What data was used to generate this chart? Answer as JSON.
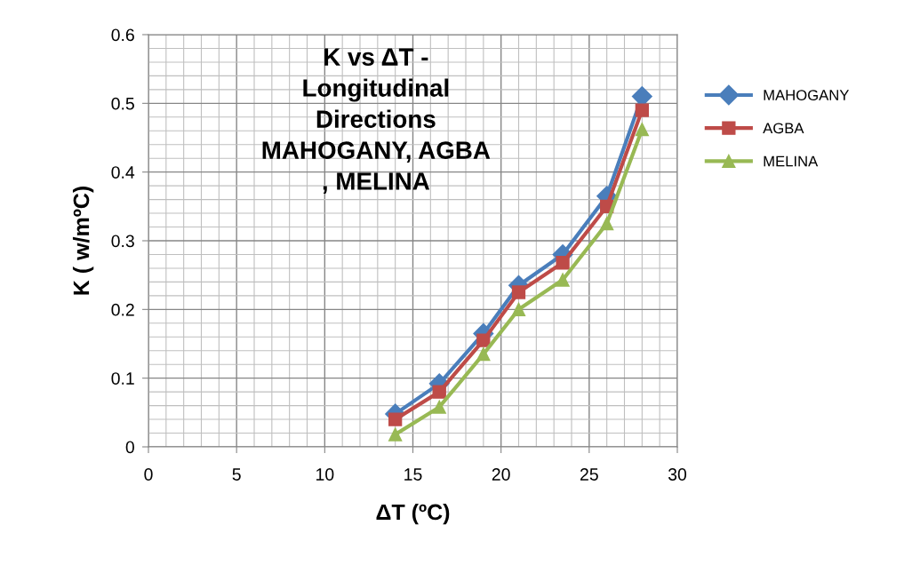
{
  "chart_data": {
    "type": "line",
    "title": "K vs ΔT -\nLongitudinal\nDirections\nMAHOGANY, AGBA\n, MELINA",
    "xlabel": "ΔT (ºC)",
    "ylabel": "K ( w/mºC)",
    "x": [
      14,
      16.5,
      19,
      21,
      23.5,
      26,
      28
    ],
    "series": [
      {
        "name": "MAHOGANY",
        "color": "#4a7ebb",
        "marker": "diamond",
        "values": [
          0.048,
          0.092,
          0.165,
          0.235,
          0.28,
          0.365,
          0.51
        ]
      },
      {
        "name": "AGBA",
        "color": "#be4b48",
        "marker": "square",
        "values": [
          0.04,
          0.08,
          0.155,
          0.225,
          0.268,
          0.35,
          0.49
        ]
      },
      {
        "name": "MELINA",
        "color": "#98b954",
        "marker": "triangle",
        "values": [
          0.018,
          0.058,
          0.135,
          0.2,
          0.243,
          0.325,
          0.462
        ]
      }
    ],
    "xlim": [
      0,
      30
    ],
    "xticks": [
      0,
      5,
      10,
      15,
      20,
      25,
      30
    ],
    "ylim": [
      0,
      0.6
    ],
    "yticks": [
      0,
      0.1,
      0.2,
      0.3,
      0.4,
      0.5,
      0.6
    ],
    "grid": true,
    "legend": "right",
    "line_style": "solid"
  }
}
